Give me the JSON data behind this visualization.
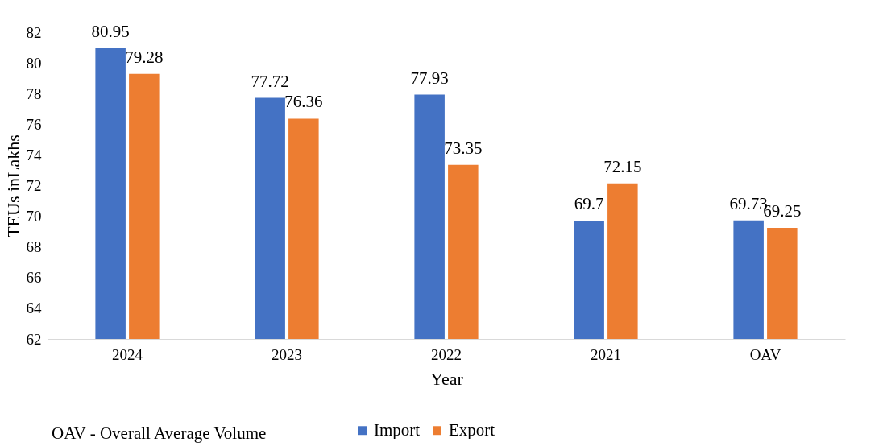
{
  "chart_data": {
    "type": "bar",
    "xlabel": "Year",
    "ylabel": "TEUs inLakhs",
    "categories": [
      "2024",
      "2023",
      "2022",
      "2021",
      "OAV"
    ],
    "series": [
      {
        "name": "Import",
        "color": "#4472c4",
        "values": [
          80.95,
          77.72,
          77.93,
          69.7,
          69.73
        ]
      },
      {
        "name": "Export",
        "color": "#ed7d31",
        "values": [
          79.28,
          76.36,
          73.35,
          72.15,
          69.25
        ]
      }
    ],
    "ylim": [
      62,
      82
    ],
    "yticks": [
      62,
      64,
      66,
      68,
      70,
      72,
      74,
      76,
      78,
      80,
      82
    ],
    "data_labels": true,
    "legend": "bottom",
    "annotations": [
      "OAV - Overall Average Volume"
    ]
  }
}
